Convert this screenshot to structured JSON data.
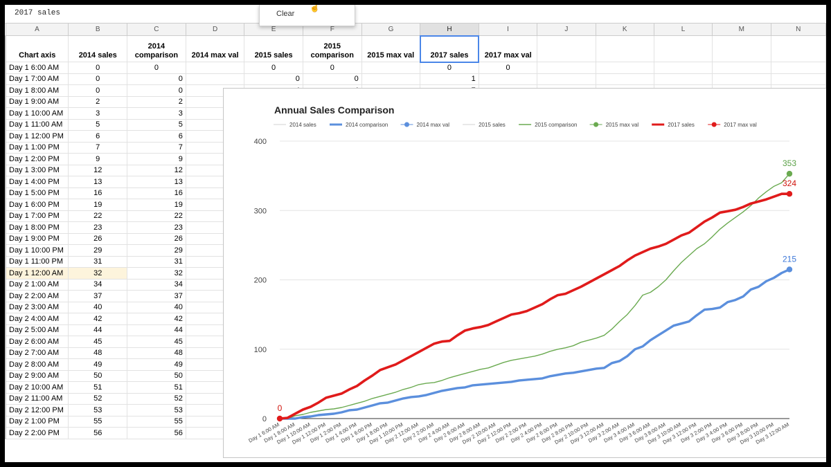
{
  "formula_bar": {
    "value": "2017 sales"
  },
  "context_menu": {
    "item": "Clear"
  },
  "columns": [
    "A",
    "B",
    "C",
    "D",
    "E",
    "F",
    "G",
    "H",
    "I",
    "J",
    "K",
    "L",
    "M",
    "N"
  ],
  "selected_column": "H",
  "headers": [
    "Chart axis",
    "2014 sales",
    "2014\ncomparison",
    "2014 max val",
    "2015 sales",
    "2015\ncomparison",
    "2015 max val",
    "2017 sales",
    "2017 max val",
    "",
    "",
    "",
    "",
    ""
  ],
  "rows": [
    [
      "Day 1 6:00 AM",
      "0",
      "0",
      "",
      "0",
      "0",
      "",
      "0",
      "0"
    ],
    [
      "Day 1 7:00 AM",
      "0",
      "0",
      "",
      "0",
      "0",
      "",
      "1",
      ""
    ],
    [
      "Day 1 8:00 AM",
      "0",
      "0",
      "",
      "4",
      "4",
      "",
      "7",
      ""
    ],
    [
      "Day 1 9:00 AM",
      "2",
      "2",
      "",
      "",
      "",
      "",
      "",
      ""
    ],
    [
      "Day 1 10:00 AM",
      "3",
      "3",
      "",
      "",
      "",
      "",
      "",
      ""
    ],
    [
      "Day 1 11:00 AM",
      "5",
      "5",
      "",
      "",
      "",
      "",
      "",
      ""
    ],
    [
      "Day 1 12:00 PM",
      "6",
      "6",
      "",
      "",
      "",
      "",
      "",
      ""
    ],
    [
      "Day 1 1:00 PM",
      "7",
      "7",
      "",
      "",
      "",
      "",
      "",
      ""
    ],
    [
      "Day 1 2:00 PM",
      "9",
      "9",
      "",
      "",
      "",
      "",
      "",
      ""
    ],
    [
      "Day 1 3:00 PM",
      "12",
      "12",
      "",
      "",
      "",
      "",
      "",
      ""
    ],
    [
      "Day 1 4:00 PM",
      "13",
      "13",
      "",
      "",
      "",
      "",
      "",
      ""
    ],
    [
      "Day 1 5:00 PM",
      "16",
      "16",
      "",
      "",
      "",
      "",
      "",
      ""
    ],
    [
      "Day 1 6:00 PM",
      "19",
      "19",
      "",
      "",
      "",
      "",
      "",
      ""
    ],
    [
      "Day 1 7:00 PM",
      "22",
      "22",
      "",
      "",
      "",
      "",
      "",
      ""
    ],
    [
      "Day 1 8:00 PM",
      "23",
      "23",
      "",
      "",
      "",
      "",
      "",
      ""
    ],
    [
      "Day 1 9:00 PM",
      "26",
      "26",
      "",
      "",
      "",
      "",
      "",
      ""
    ],
    [
      "Day 1 10:00 PM",
      "29",
      "29",
      "",
      "",
      "",
      "",
      "",
      ""
    ],
    [
      "Day 1 11:00 PM",
      "31",
      "31",
      "",
      "",
      "",
      "",
      "",
      ""
    ],
    [
      "Day 1 12:00 AM",
      "32",
      "32",
      "",
      "",
      "",
      "",
      "",
      ""
    ],
    [
      "Day 2 1:00 AM",
      "34",
      "34",
      "",
      "",
      "",
      "",
      "",
      ""
    ],
    [
      "Day 2 2:00 AM",
      "37",
      "37",
      "",
      "",
      "",
      "",
      "",
      ""
    ],
    [
      "Day 2 3:00 AM",
      "40",
      "40",
      "",
      "",
      "",
      "",
      "",
      ""
    ],
    [
      "Day 2 4:00 AM",
      "42",
      "42",
      "",
      "",
      "",
      "",
      "",
      ""
    ],
    [
      "Day 2 5:00 AM",
      "44",
      "44",
      "",
      "",
      "",
      "",
      "",
      ""
    ],
    [
      "Day 2 6:00 AM",
      "45",
      "45",
      "",
      "",
      "",
      "",
      "",
      ""
    ],
    [
      "Day 2 7:00 AM",
      "48",
      "48",
      "",
      "",
      "",
      "",
      "",
      ""
    ],
    [
      "Day 2 8:00 AM",
      "49",
      "49",
      "",
      "",
      "",
      "",
      "",
      ""
    ],
    [
      "Day 2 9:00 AM",
      "50",
      "50",
      "",
      "",
      "",
      "",
      "",
      ""
    ],
    [
      "Day 2 10:00 AM",
      "51",
      "51",
      "",
      "",
      "",
      "",
      "",
      ""
    ],
    [
      "Day 2 11:00 AM",
      "52",
      "52",
      "",
      "",
      "",
      "",
      "",
      ""
    ],
    [
      "Day 2 12:00 PM",
      "53",
      "53",
      "",
      "",
      "",
      "",
      "",
      ""
    ],
    [
      "Day 2 1:00 PM",
      "55",
      "55",
      "",
      "",
      "",
      "",
      "",
      ""
    ],
    [
      "Day 2 2:00 PM",
      "56",
      "56",
      "",
      "",
      "",
      "",
      "",
      ""
    ]
  ],
  "highlighted_row": 18,
  "chart_data": {
    "type": "line",
    "title": "Annual Sales Comparison",
    "legend_position": "top",
    "ylim": [
      0,
      400
    ],
    "y_ticks": [
      0,
      100,
      200,
      300,
      400
    ],
    "grid": true,
    "x_tick_labels": [
      "Day 1 6:00 AM",
      "Day 1 8:00 AM",
      "Day 1 10:00 AM",
      "Day 1 12:00 PM",
      "Day 1 2:00 PM",
      "Day 1 4:00 PM",
      "Day 1 6:00 PM",
      "Day 1 8:00 PM",
      "Day 1 10:00 PM",
      "Day 2 12:00 AM",
      "Day 2 2:00 AM",
      "Day 2 4:00 AM",
      "Day 2 6:00 AM",
      "Day 2 8:00 AM",
      "Day 2 10:00 AM",
      "Day 2 12:00 PM",
      "Day 2 2:00 PM",
      "Day 2 4:00 PM",
      "Day 2 6:00 PM",
      "Day 2 8:00 PM",
      "Day 2 10:00 PM",
      "Day 3 12:00 AM",
      "Day 3 2:00 AM",
      "Day 3 4:00 AM",
      "Day 3 6:00 AM",
      "Day 3 8:00 AM",
      "Day 3 10:00 AM",
      "Day 3 12:00 PM",
      "Day 3 2:00 PM",
      "Day 3 4:00 PM",
      "Day 3 6:00 PM",
      "Day 3 8:00 PM",
      "Day 3 10:00 PM",
      "Day 3 12:00 AM"
    ],
    "series": [
      {
        "name": "2014 sales",
        "color": "#d0d0d0",
        "width": 1,
        "marker": false,
        "legend_icon": "line",
        "values": []
      },
      {
        "name": "2014 comparison",
        "color": "#5b8fdd",
        "width": 3.4,
        "marker": false,
        "legend_icon": "line",
        "values": [
          0,
          0,
          0,
          2,
          3,
          5,
          6,
          7,
          9,
          12,
          13,
          16,
          19,
          22,
          23,
          26,
          29,
          31,
          32,
          34,
          37,
          40,
          42,
          44,
          45,
          48,
          49,
          50,
          51,
          52,
          53,
          55,
          56,
          57,
          58,
          61,
          63,
          65,
          66,
          68,
          70,
          72,
          73,
          80,
          83,
          90,
          100,
          104,
          113,
          120,
          127,
          134,
          137,
          140,
          149,
          157,
          158,
          160,
          168,
          171,
          176,
          186,
          190,
          198,
          203,
          210,
          215
        ]
      },
      {
        "name": "2014 max val",
        "color": "#5b8fdd",
        "width": 0,
        "marker": true,
        "legend_icon": "dot",
        "label_color": "#3d78d8",
        "points": [
          {
            "x": 66,
            "y": 215
          }
        ]
      },
      {
        "name": "2015 sales",
        "color": "#d0d0d0",
        "width": 1,
        "marker": false,
        "legend_icon": "line",
        "values": []
      },
      {
        "name": "2015 comparison",
        "color": "#6aaa50",
        "width": 1.4,
        "marker": false,
        "legend_icon": "line",
        "values": [
          0,
          0,
          4,
          6,
          9,
          11,
          13,
          14,
          16,
          19,
          22,
          25,
          29,
          32,
          35,
          38,
          42,
          45,
          49,
          51,
          52,
          55,
          59,
          62,
          65,
          68,
          71,
          73,
          77,
          81,
          84,
          86,
          88,
          90,
          93,
          97,
          100,
          102,
          105,
          110,
          113,
          116,
          120,
          129,
          140,
          150,
          163,
          178,
          182,
          190,
          200,
          213,
          225,
          235,
          245,
          252,
          262,
          273,
          282,
          290,
          298,
          307,
          318,
          327,
          335,
          340,
          353
        ]
      },
      {
        "name": "2015 max val",
        "color": "#6aaa50",
        "width": 0,
        "marker": true,
        "legend_icon": "dot",
        "label_color": "#59a045",
        "points": [
          {
            "x": 66,
            "y": 353
          }
        ]
      },
      {
        "name": "2017 sales",
        "color": "#e01b1b",
        "width": 3.6,
        "marker": false,
        "legend_icon": "line",
        "values": [
          0,
          1,
          7,
          13,
          17,
          23,
          30,
          33,
          36,
          42,
          47,
          55,
          62,
          70,
          74,
          78,
          84,
          90,
          96,
          102,
          108,
          111,
          112,
          120,
          127,
          130,
          132,
          135,
          140,
          145,
          150,
          152,
          155,
          160,
          165,
          172,
          178,
          180,
          185,
          190,
          196,
          202,
          208,
          214,
          220,
          228,
          235,
          240,
          245,
          248,
          252,
          258,
          264,
          268,
          276,
          284,
          290,
          297,
          299,
          301,
          305,
          310,
          313,
          316,
          320,
          324,
          324
        ]
      },
      {
        "name": "2017 max val",
        "color": "#e01b1b",
        "width": 0,
        "marker": true,
        "legend_icon": "dot",
        "label_color": "#d0140c",
        "points": [
          {
            "x": 0,
            "y": 0
          },
          {
            "x": 66,
            "y": 324
          }
        ]
      }
    ]
  }
}
